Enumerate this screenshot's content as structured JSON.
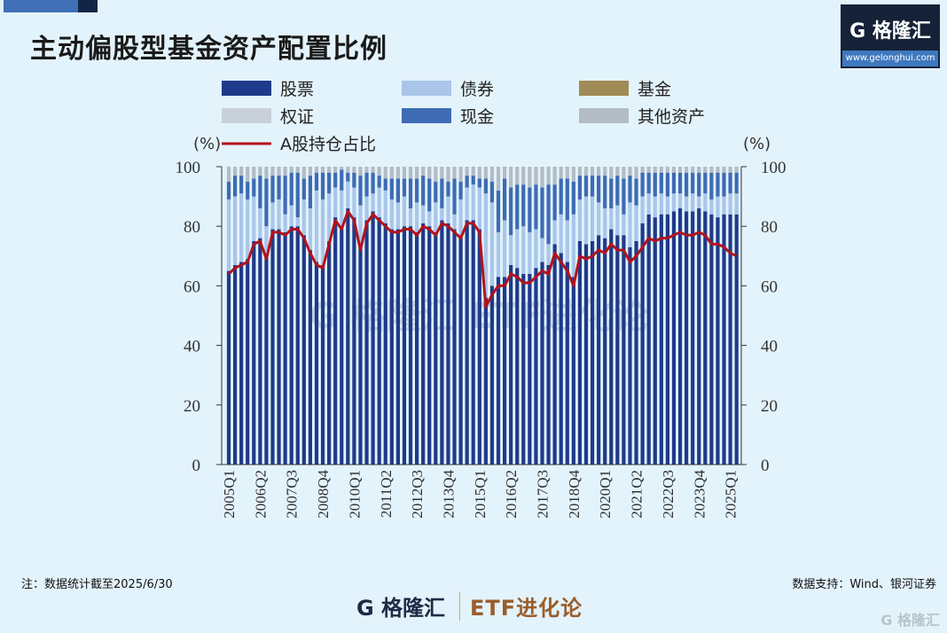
{
  "title": "主动偏股型基金资产配置比例",
  "logo": {
    "text": "G 格隆汇",
    "url_text": "www.gelonghui.com"
  },
  "footer": {
    "note": "注：数据统计截至2025/6/30",
    "source": "数据支持：Wind、银河证券",
    "brand": "G 格隆汇",
    "brand2": "ETF进化论",
    "watermark": "G 格隆汇"
  },
  "chart_data": {
    "type": "bar",
    "stacked": true,
    "left_unit": "(%)",
    "right_unit": "(%)",
    "ylim": [
      0,
      100
    ],
    "yticks": [
      0,
      20,
      40,
      60,
      80,
      100
    ],
    "xtick_labels": [
      "2005Q1",
      "2006Q2",
      "2007Q3",
      "2008Q4",
      "2010Q1",
      "2011Q2",
      "2012Q3",
      "2013Q4",
      "2015Q1",
      "2016Q2",
      "2017Q3",
      "2018Q4",
      "2020Q1",
      "2021Q2",
      "2022Q3",
      "2023Q4",
      "2025Q1"
    ],
    "first_period": "2005Q1",
    "last_period": "2025Q2",
    "legend": [
      {
        "name": "股票",
        "color": "#1f3a8a"
      },
      {
        "name": "债券",
        "color": "#a9c6ea"
      },
      {
        "name": "基金",
        "color": "#a08a55"
      },
      {
        "name": "权证",
        "color": "#c8d0d8"
      },
      {
        "name": "现金",
        "color": "#3e6bb3"
      },
      {
        "name": "其他资产",
        "color": "#b3bcc4"
      },
      {
        "name": "A股持仓占比",
        "color": "#b5121b"
      }
    ],
    "series": {
      "股票": [
        65,
        67,
        68,
        69,
        75,
        76,
        70,
        79,
        79,
        78,
        80,
        80,
        77,
        72,
        68,
        67,
        75,
        83,
        80,
        86,
        83,
        73,
        82,
        85,
        83,
        81,
        79,
        79,
        80,
        80,
        78,
        81,
        80,
        78,
        82,
        81,
        79,
        77,
        82,
        82,
        79,
        56,
        60,
        63,
        63,
        67,
        66,
        64,
        64,
        66,
        68,
        67,
        74,
        71,
        68,
        63,
        75,
        74,
        75,
        77,
        76,
        79,
        77,
        77,
        73,
        75,
        81,
        84,
        83,
        84,
        84,
        85,
        86,
        85,
        85,
        86,
        85,
        84,
        83,
        84,
        84,
        84
      ],
      "债券": [
        24,
        23,
        23,
        20,
        15,
        10,
        10,
        9,
        10,
        6,
        7,
        3,
        12,
        14,
        24,
        22,
        16,
        10,
        12,
        9,
        10,
        14,
        8,
        6,
        10,
        11,
        10,
        9,
        10,
        6,
        10,
        6,
        5,
        10,
        4,
        9,
        5,
        12,
        11,
        12,
        14,
        35,
        28,
        15,
        19,
        10,
        13,
        16,
        14,
        13,
        8,
        7,
        8,
        13,
        14,
        21,
        14,
        16,
        15,
        11,
        10,
        7,
        10,
        7,
        15,
        12,
        9,
        7,
        7,
        7,
        6,
        6,
        5,
        5,
        6,
        4,
        6,
        5,
        7,
        6,
        7,
        7
      ],
      "现金": [
        6,
        7,
        6,
        6,
        6,
        11,
        16,
        9,
        8,
        13,
        11,
        15,
        7,
        11,
        6,
        9,
        7,
        5,
        7,
        3,
        5,
        10,
        8,
        7,
        4,
        4,
        7,
        8,
        6,
        10,
        8,
        10,
        11,
        7,
        10,
        5,
        12,
        6,
        4,
        3,
        3,
        5,
        7,
        14,
        14,
        16,
        15,
        14,
        15,
        15,
        17,
        20,
        12,
        12,
        14,
        11,
        8,
        7,
        7,
        9,
        11,
        10,
        10,
        12,
        9,
        9,
        8,
        7,
        8,
        7,
        8,
        7,
        7,
        8,
        7,
        8,
        7,
        9,
        8,
        8,
        7,
        7
      ],
      "其他资产": [
        5,
        3,
        3,
        5,
        4,
        3,
        4,
        3,
        3,
        3,
        2,
        2,
        4,
        3,
        2,
        2,
        2,
        2,
        1,
        2,
        2,
        3,
        2,
        2,
        3,
        4,
        4,
        4,
        4,
        4,
        4,
        3,
        4,
        5,
        4,
        5,
        4,
        5,
        3,
        3,
        4,
        4,
        5,
        8,
        4,
        7,
        6,
        6,
        7,
        6,
        7,
        6,
        6,
        4,
        4,
        5,
        3,
        3,
        3,
        3,
        3,
        4,
        3,
        4,
        3,
        4,
        2,
        2,
        2,
        2,
        2,
        2,
        2,
        2,
        2,
        2,
        2,
        2,
        2,
        2,
        2,
        2
      ],
      "A股持仓占比": [
        64,
        66,
        67,
        68,
        74,
        75,
        69,
        78,
        78,
        77,
        79,
        79,
        76,
        71,
        67,
        66,
        74,
        82,
        79,
        85,
        82,
        72,
        81,
        84,
        82,
        80,
        78,
        78,
        79,
        79,
        77,
        80,
        79,
        77,
        81,
        80,
        78,
        76,
        81,
        81,
        78,
        53,
        57,
        60,
        60,
        64,
        63,
        61,
        61,
        63,
        65,
        64,
        71,
        68,
        65,
        60,
        70,
        69,
        70,
        72,
        71,
        74,
        72,
        72,
        68,
        70,
        73,
        76,
        75,
        76,
        76,
        77,
        78,
        77,
        77,
        78,
        77,
        74,
        74,
        73,
        71,
        70
      ]
    }
  }
}
